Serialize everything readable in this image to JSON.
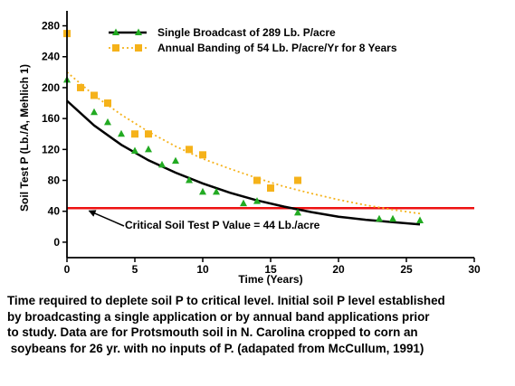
{
  "chart_data": {
    "type": "scatter",
    "xlabel": "Time (Years)",
    "ylabel": "Soil Test P (Lb./A, Mehlich 1)",
    "xlim": [
      0,
      30
    ],
    "ylim": [
      -20,
      290
    ],
    "x_ticks": [
      "0",
      "5",
      "10",
      "15",
      "20",
      "25",
      "30"
    ],
    "y_ticks": [
      "0",
      "40",
      "80",
      "120",
      "160",
      "200",
      "240",
      "280"
    ],
    "grid": false,
    "legend_position": "top",
    "series": [
      {
        "name": "Single Broadcast of 289 Lb. P/acre",
        "marker": "triangle",
        "color": "#22aa22",
        "points": [
          [
            0,
            210
          ],
          [
            2,
            168
          ],
          [
            3,
            155
          ],
          [
            4,
            140
          ],
          [
            5,
            118
          ],
          [
            6,
            120
          ],
          [
            7,
            100
          ],
          [
            8,
            105
          ],
          [
            9,
            80
          ],
          [
            10,
            65
          ],
          [
            11,
            65
          ],
          [
            13,
            50
          ],
          [
            14,
            53
          ],
          [
            17,
            38
          ],
          [
            23,
            30
          ],
          [
            24,
            30
          ],
          [
            26,
            28
          ]
        ]
      },
      {
        "name": "Annual Banding of 54 Lb. P/acre/Yr for 8 Years",
        "marker": "square",
        "color": "#f5b21a",
        "points": [
          [
            0,
            270
          ],
          [
            1,
            200
          ],
          [
            2,
            190
          ],
          [
            3,
            180
          ],
          [
            5,
            140
          ],
          [
            6,
            140
          ],
          [
            9,
            120
          ],
          [
            10,
            113
          ],
          [
            14,
            80
          ],
          [
            15,
            70
          ],
          [
            17,
            80
          ]
        ]
      }
    ],
    "fits": [
      {
        "series": "Single Broadcast of 289 Lb. P/acre",
        "style": "solid",
        "color": "#000000",
        "points": [
          [
            0,
            183
          ],
          [
            2,
            151
          ],
          [
            4,
            126
          ],
          [
            6,
            106
          ],
          [
            8,
            90
          ],
          [
            10,
            76
          ],
          [
            12,
            64
          ],
          [
            14,
            54
          ],
          [
            16,
            46
          ],
          [
            18,
            39
          ],
          [
            20,
            33
          ],
          [
            22,
            29
          ],
          [
            24,
            26
          ],
          [
            26,
            23
          ]
        ]
      },
      {
        "series": "Annual Banding of 54 Lb. P/acre/Yr for 8 Years",
        "style": "dotted",
        "color": "#f5b21a",
        "points": [
          [
            0,
            220
          ],
          [
            2,
            190
          ],
          [
            4,
            165
          ],
          [
            6,
            143
          ],
          [
            8,
            124
          ],
          [
            10,
            108
          ],
          [
            12,
            95
          ],
          [
            14,
            83
          ],
          [
            16,
            72
          ],
          [
            18,
            63
          ],
          [
            20,
            55
          ],
          [
            22,
            48
          ],
          [
            24,
            42
          ],
          [
            26,
            37
          ]
        ]
      }
    ],
    "reference_line": {
      "y": 44,
      "color": "#ee1111",
      "label": "Critical Soil Test P Value = 44 Lb./acre"
    },
    "annotation_arrow_to": [
      1.5,
      44
    ]
  },
  "caption_lines": [
    "Time required to deplete soil P to critical level. Initial soil P level established",
    "by broadcasting a single application or by annual band applications prior",
    "to study. Data are for Protsmouth soil in N. Carolina cropped to corn an",
    " soybeans for 26 yr. with no inputs of P. (adapated from McCullum, 1991)"
  ]
}
